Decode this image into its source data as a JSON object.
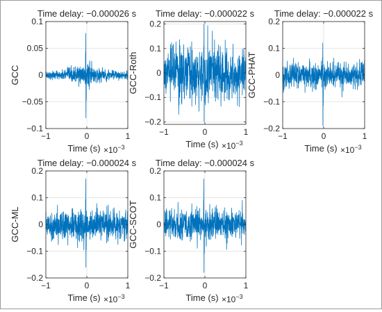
{
  "figure": {
    "trace_color": "#0072BD",
    "axis_color": "#262626",
    "grid_color": "#e6e6e6"
  },
  "chart_data": [
    {
      "type": "line",
      "title": "Time delay: −0.000026 s",
      "ylabel": "GCC",
      "xlabel": "Time (s)",
      "x_exponent": "×10",
      "x_exponent_power": "−3",
      "xlim": [
        -1,
        1
      ],
      "ylim": [
        -0.1,
        0.1
      ],
      "xticks": [
        -1,
        0,
        1
      ],
      "xtick_labels": [
        "−1",
        "0",
        "1"
      ],
      "yticks": [
        -0.1,
        -0.05,
        0,
        0.05,
        0.1
      ],
      "ytick_labels": [
        "−0.1",
        "−0.05",
        "0",
        "0.05",
        "0.1"
      ],
      "grid": true,
      "series": [
        {
          "x_range": [
            -1,
            1
          ],
          "samples": 600,
          "noise": 0.01,
          "envelope_width": 0.45,
          "peak_x": -0.026,
          "peak_max": 0.078,
          "peak_min": -0.08
        }
      ]
    },
    {
      "type": "line",
      "title": "Time delay: −0.000022 s",
      "ylabel": "GCC-Roth",
      "xlabel": "Time (s)",
      "x_exponent": "×10",
      "x_exponent_power": "−3",
      "xlim": [
        -1,
        1
      ],
      "ylim": [
        -0.21,
        0.21
      ],
      "xticks": [
        -1,
        0,
        1
      ],
      "xtick_labels": [
        "−1",
        "0",
        "1"
      ],
      "yticks": [
        -0.2,
        -0.1,
        0,
        0.1,
        0.2
      ],
      "ytick_labels": [
        "−0.2",
        "−0.1",
        "0",
        "0.1",
        "0.2"
      ],
      "grid": true,
      "series": [
        {
          "x_range": [
            -1,
            1
          ],
          "samples": 600,
          "noise": 0.06,
          "envelope_width": 1.6,
          "peak_x": -0.022,
          "peak_max": 0.2,
          "peak_min": -0.2
        }
      ]
    },
    {
      "type": "line",
      "title": "Time delay: −0.000022 s",
      "ylabel": "GCC-PHAT",
      "xlabel": "Time (s)",
      "x_exponent": "×10",
      "x_exponent_power": "−3",
      "xlim": [
        -1,
        1
      ],
      "ylim": [
        -0.2,
        0.2
      ],
      "xticks": [
        -1,
        0,
        1
      ],
      "xtick_labels": [
        "−1",
        "0",
        "1"
      ],
      "yticks": [
        -0.2,
        -0.1,
        0,
        0.1,
        0.2
      ],
      "ytick_labels": [
        "−0.2",
        "−0.1",
        "0",
        "0.1",
        "0.2"
      ],
      "grid": true,
      "series": [
        {
          "x_range": [
            -1,
            1
          ],
          "samples": 600,
          "noise": 0.025,
          "envelope_width": 2.5,
          "peak_x": -0.022,
          "peak_max": 0.12,
          "peak_min": -0.19
        }
      ]
    },
    {
      "type": "line",
      "title": "Time delay: −0.000024 s",
      "ylabel": "GCC-ML",
      "xlabel": "Time (s)",
      "x_exponent": "×10",
      "x_exponent_power": "−3",
      "xlim": [
        -1,
        1
      ],
      "ylim": [
        -0.2,
        0.2
      ],
      "xticks": [
        -1,
        0,
        1
      ],
      "xtick_labels": [
        "−1",
        "0",
        "1"
      ],
      "yticks": [
        -0.2,
        -0.1,
        0,
        0.1,
        0.2
      ],
      "ytick_labels": [
        "−0.2",
        "−0.1",
        "0",
        "0.1",
        "0.2"
      ],
      "grid": true,
      "series": [
        {
          "x_range": [
            -1,
            1
          ],
          "samples": 600,
          "noise": 0.03,
          "envelope_width": 2.5,
          "peak_x": -0.024,
          "peak_max": 0.17,
          "peak_min": -0.16
        }
      ]
    },
    {
      "type": "line",
      "title": "Time delay: −0.000024 s",
      "ylabel": "GCC-SCOT",
      "xlabel": "Time (s)",
      "x_exponent": "×10",
      "x_exponent_power": "−3",
      "xlim": [
        -1,
        1
      ],
      "ylim": [
        -0.2,
        0.2
      ],
      "xticks": [
        -1,
        0,
        1
      ],
      "xtick_labels": [
        "−1",
        "0",
        "1"
      ],
      "yticks": [
        -0.2,
        -0.1,
        0,
        0.1,
        0.2
      ],
      "ytick_labels": [
        "−0.2",
        "−0.1",
        "0",
        "0.1",
        "0.2"
      ],
      "grid": true,
      "series": [
        {
          "x_range": [
            -1,
            1
          ],
          "samples": 600,
          "noise": 0.03,
          "envelope_width": 2.5,
          "peak_x": -0.024,
          "peak_max": 0.17,
          "peak_min": -0.18
        }
      ]
    }
  ]
}
